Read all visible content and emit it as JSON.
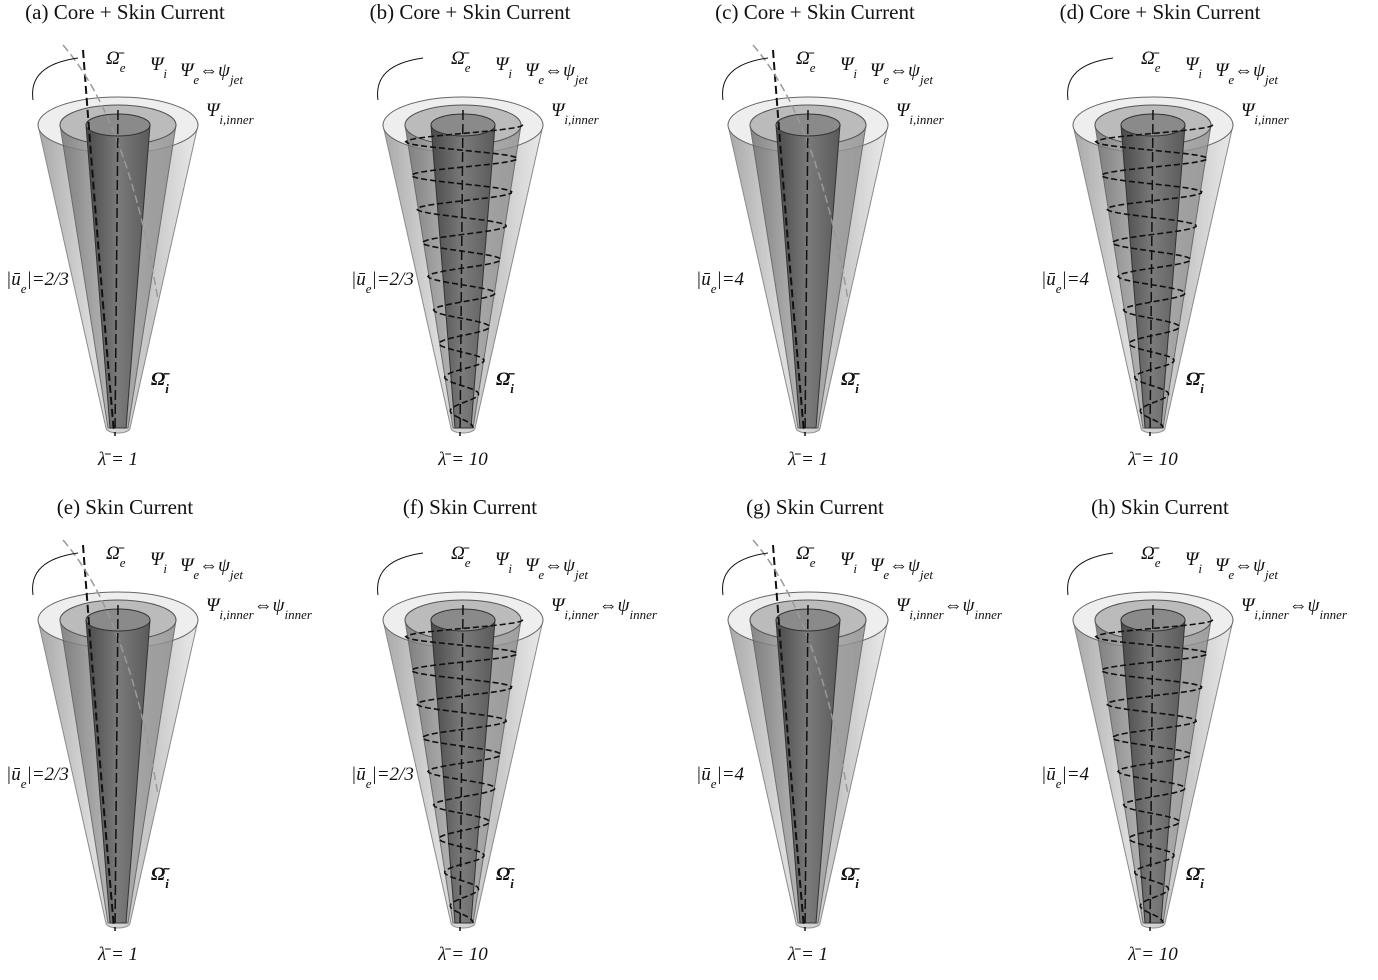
{
  "panels": [
    {
      "title": "(a) Core + Skin Current",
      "omega_e": [
        "Ω̄",
        "e"
      ],
      "psi_i": [
        "Ψ",
        "i"
      ],
      "psi_e": [
        "Ψ",
        "e",
        "⇔ψ",
        "jet"
      ],
      "psi_inner": [
        "Ψ",
        "i,inner"
      ],
      "ue": [
        "|ū",
        "e",
        "|=2/3"
      ],
      "omega_i": [
        "Ω̄",
        "i"
      ],
      "lambda": "λ̄ = 1"
    },
    {
      "title": "(b) Core + Skin Current",
      "omega_e": [
        "Ω̄",
        "e"
      ],
      "psi_i": [
        "Ψ",
        "i"
      ],
      "psi_e": [
        "Ψ",
        "e",
        "⇔ψ",
        "jet"
      ],
      "psi_inner": [
        "Ψ",
        "i,inner"
      ],
      "ue": [
        "|ū",
        "e",
        "|=2/3"
      ],
      "omega_i": [
        "Ω̄",
        "i"
      ],
      "lambda": "λ̄ = 10"
    },
    {
      "title": "(c) Core + Skin Current",
      "omega_e": [
        "Ω̄",
        "e"
      ],
      "psi_i": [
        "Ψ",
        "i"
      ],
      "psi_e": [
        "Ψ",
        "e",
        "⇔ψ",
        "jet"
      ],
      "psi_inner": [
        "Ψ",
        "i,inner"
      ],
      "ue": [
        "|ū",
        "e",
        "|=4"
      ],
      "omega_i": [
        "Ω̄",
        "i"
      ],
      "lambda": "λ̄ = 1"
    },
    {
      "title": "(d) Core + Skin Current",
      "omega_e": [
        "Ω̄",
        "e"
      ],
      "psi_i": [
        "Ψ",
        "i"
      ],
      "psi_e": [
        "Ψ",
        "e",
        "⇔ψ",
        "jet"
      ],
      "psi_inner": [
        "Ψ",
        "i,inner"
      ],
      "ue": [
        "|ū",
        "e",
        "|=4"
      ],
      "omega_i": [
        "Ω̄",
        "i"
      ],
      "lambda": "λ̄ = 10"
    },
    {
      "title": "(e) Skin Current",
      "omega_e": [
        "Ω̄",
        "e"
      ],
      "psi_i": [
        "Ψ",
        "i"
      ],
      "psi_e": [
        "Ψ",
        "e",
        "⇔ψ",
        "jet"
      ],
      "psi_inner": [
        "Ψ",
        "i,inner",
        "⇔ψ",
        "inner"
      ],
      "ue": [
        "|ū",
        "e",
        "|=2/3"
      ],
      "omega_i": [
        "Ω̄",
        "i"
      ],
      "lambda": "λ̄ = 1"
    },
    {
      "title": "(f) Skin Current",
      "omega_e": [
        "Ω̄",
        "e"
      ],
      "psi_i": [
        "Ψ",
        "i"
      ],
      "psi_e": [
        "Ψ",
        "e",
        "⇔ψ",
        "jet"
      ],
      "psi_inner": [
        "Ψ",
        "i,inner",
        "⇔ψ",
        "inner"
      ],
      "ue": [
        "|ū",
        "e",
        "|=2/3"
      ],
      "omega_i": [
        "Ω̄",
        "i"
      ],
      "lambda": "λ̄ = 10"
    },
    {
      "title": "(g) Skin Current",
      "omega_e": [
        "Ω̄",
        "e"
      ],
      "psi_i": [
        "Ψ",
        "i"
      ],
      "psi_e": [
        "Ψ",
        "e",
        "⇔ψ",
        "jet"
      ],
      "psi_inner": [
        "Ψ",
        "i,inner",
        "⇔ψ",
        "inner"
      ],
      "ue": [
        "|ū",
        "e",
        "|=4"
      ],
      "omega_i": [
        "Ω̄",
        "i"
      ],
      "lambda": "λ̄ = 1"
    },
    {
      "title": "(h) Skin Current",
      "omega_e": [
        "Ω̄",
        "e"
      ],
      "psi_i": [
        "Ψ",
        "i"
      ],
      "psi_e": [
        "Ψ",
        "e",
        "⇔ψ",
        "jet"
      ],
      "psi_inner": [
        "Ψ",
        "i,inner",
        "⇔ψ",
        "inner"
      ],
      "ue": [
        "|ū",
        "e",
        "|=4"
      ],
      "omega_i": [
        "Ω̄",
        "i"
      ],
      "lambda": "λ̄ = 10"
    }
  ]
}
